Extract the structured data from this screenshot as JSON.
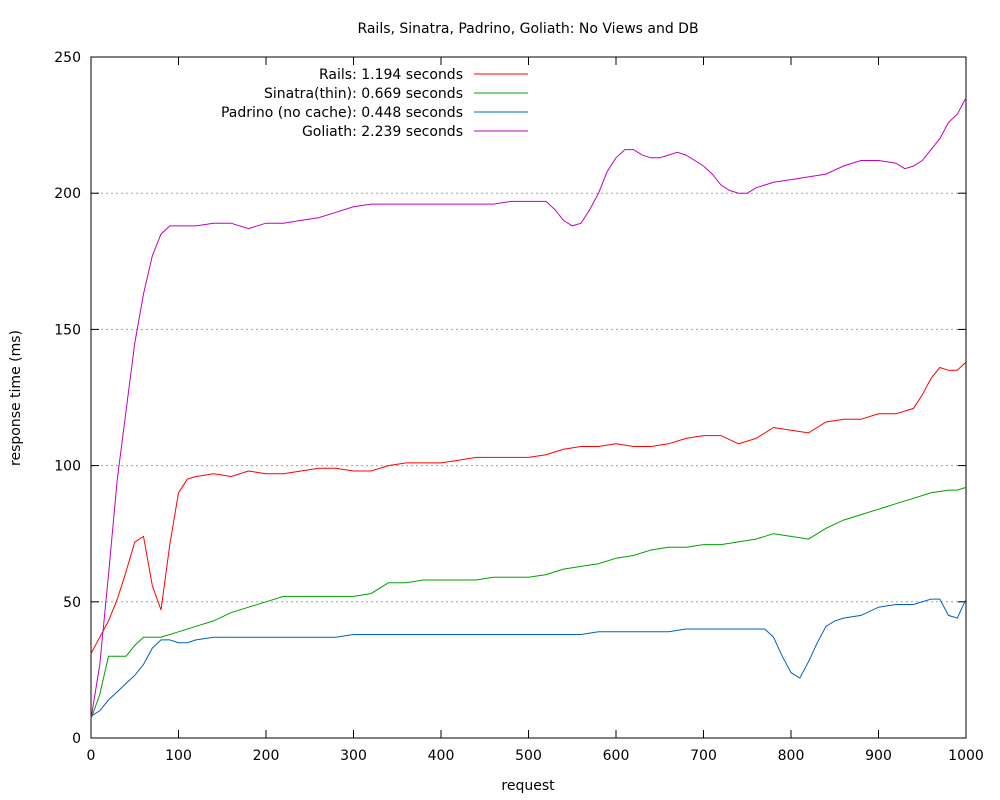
{
  "chart_data": {
    "type": "line",
    "title": "Rails, Sinatra, Padrino, Goliath: No Views and DB",
    "xlabel": "request",
    "ylabel": "response time (ms)",
    "xlim": [
      0,
      1000
    ],
    "ylim": [
      0,
      250
    ],
    "xticks": [
      0,
      100,
      200,
      300,
      400,
      500,
      600,
      700,
      800,
      900,
      1000
    ],
    "yticks": [
      0,
      50,
      100,
      150,
      200,
      250
    ],
    "grid": "horizontal dotted",
    "legend_position": "top-left",
    "series": [
      {
        "name": "Rails: 1.194 seconds",
        "color": "#ff0000",
        "x": [
          0,
          10,
          20,
          30,
          40,
          50,
          60,
          70,
          80,
          90,
          100,
          110,
          120,
          140,
          160,
          180,
          200,
          220,
          240,
          260,
          280,
          300,
          320,
          340,
          360,
          380,
          400,
          420,
          440,
          460,
          480,
          500,
          520,
          540,
          560,
          580,
          600,
          620,
          640,
          660,
          680,
          700,
          720,
          740,
          760,
          780,
          800,
          820,
          840,
          860,
          880,
          900,
          920,
          940,
          950,
          960,
          970,
          980,
          990,
          1000
        ],
        "y": [
          31,
          37,
          43,
          51,
          61,
          72,
          74,
          56,
          47,
          71,
          90,
          95,
          96,
          97,
          96,
          98,
          97,
          97,
          98,
          99,
          99,
          98,
          98,
          100,
          101,
          101,
          101,
          102,
          103,
          103,
          103,
          103,
          104,
          106,
          107,
          107,
          108,
          107,
          107,
          108,
          110,
          111,
          111,
          108,
          110,
          114,
          113,
          112,
          116,
          117,
          117,
          119,
          119,
          121,
          126,
          132,
          136,
          135,
          135,
          138
        ]
      },
      {
        "name": "Sinatra(thin): 0.669 seconds",
        "color": "#00a000",
        "x": [
          0,
          10,
          20,
          30,
          40,
          50,
          60,
          70,
          80,
          100,
          120,
          140,
          160,
          180,
          200,
          220,
          240,
          260,
          280,
          300,
          320,
          340,
          360,
          380,
          400,
          420,
          440,
          460,
          480,
          500,
          520,
          540,
          560,
          580,
          600,
          620,
          640,
          660,
          680,
          700,
          720,
          740,
          760,
          780,
          800,
          820,
          840,
          860,
          880,
          900,
          920,
          940,
          960,
          980,
          990,
          1000
        ],
        "y": [
          7,
          16,
          30,
          30,
          30,
          34,
          37,
          37,
          37,
          39,
          41,
          43,
          46,
          48,
          50,
          52,
          52,
          52,
          52,
          52,
          53,
          57,
          57,
          58,
          58,
          58,
          58,
          59,
          59,
          59,
          60,
          62,
          63,
          64,
          66,
          67,
          69,
          70,
          70,
          71,
          71,
          72,
          73,
          75,
          74,
          73,
          77,
          80,
          82,
          84,
          86,
          88,
          90,
          91,
          91,
          92
        ]
      },
      {
        "name": "Padrino (no cache): 0.448 seconds",
        "color": "#0060c0",
        "x": [
          0,
          10,
          20,
          30,
          40,
          50,
          60,
          70,
          80,
          90,
          100,
          110,
          120,
          140,
          160,
          180,
          200,
          220,
          240,
          260,
          280,
          300,
          320,
          340,
          360,
          380,
          400,
          420,
          440,
          460,
          480,
          500,
          520,
          540,
          560,
          580,
          600,
          620,
          640,
          660,
          680,
          700,
          720,
          740,
          760,
          770,
          780,
          790,
          800,
          810,
          820,
          830,
          840,
          850,
          860,
          880,
          900,
          920,
          940,
          960,
          970,
          980,
          990,
          1000
        ],
        "y": [
          8,
          10,
          14,
          17,
          20,
          23,
          27,
          33,
          36,
          36,
          35,
          35,
          36,
          37,
          37,
          37,
          37,
          37,
          37,
          37,
          37,
          38,
          38,
          38,
          38,
          38,
          38,
          38,
          38,
          38,
          38,
          38,
          38,
          38,
          38,
          39,
          39,
          39,
          39,
          39,
          40,
          40,
          40,
          40,
          40,
          40,
          37,
          30,
          24,
          22,
          28,
          35,
          41,
          43,
          44,
          45,
          48,
          49,
          49,
          51,
          51,
          45,
          44,
          51
        ]
      },
      {
        "name": "Goliath: 2.239 seconds",
        "color": "#c000c0",
        "x": [
          0,
          10,
          20,
          30,
          40,
          50,
          60,
          70,
          80,
          90,
          100,
          120,
          140,
          160,
          180,
          200,
          220,
          240,
          260,
          280,
          300,
          320,
          340,
          360,
          380,
          400,
          420,
          440,
          460,
          480,
          500,
          520,
          530,
          540,
          550,
          560,
          570,
          580,
          590,
          600,
          610,
          620,
          630,
          640,
          650,
          660,
          670,
          680,
          690,
          700,
          710,
          720,
          730,
          740,
          750,
          760,
          780,
          800,
          820,
          840,
          860,
          880,
          900,
          920,
          930,
          940,
          950,
          960,
          970,
          980,
          990,
          1000
        ],
        "y": [
          7,
          27,
          60,
          95,
          120,
          145,
          163,
          177,
          185,
          188,
          188,
          188,
          189,
          189,
          187,
          189,
          189,
          190,
          191,
          193,
          195,
          196,
          196,
          196,
          196,
          196,
          196,
          196,
          196,
          197,
          197,
          197,
          194,
          190,
          188,
          189,
          194,
          200,
          208,
          213,
          216,
          216,
          214,
          213,
          213,
          214,
          215,
          214,
          212,
          210,
          207,
          203,
          201,
          200,
          200,
          202,
          204,
          205,
          206,
          207,
          210,
          212,
          212,
          211,
          209,
          210,
          212,
          216,
          220,
          226,
          229,
          235
        ]
      }
    ]
  }
}
